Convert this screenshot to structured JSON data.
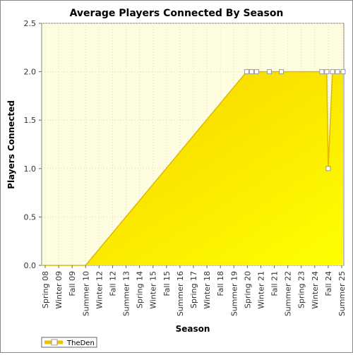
{
  "chart_data": {
    "type": "area",
    "title": "Average Players Connected By Season",
    "xlabel": "Season",
    "ylabel": "Players Connected",
    "ylim": [
      0,
      2.5
    ],
    "yticks": [
      "0.0",
      "0.5",
      "1.0",
      "1.5",
      "2.0",
      "2.5"
    ],
    "categories": [
      "Spring 08",
      "Winter 09",
      "Fall 09",
      "Summer 10",
      "Winter 12",
      "Fall 12",
      "Summer 13",
      "Spring 14",
      "Winter 15",
      "Fall 15",
      "Summer 16",
      "Spring 17",
      "Winter 18",
      "Fall 18",
      "Summer 19",
      "Spring 20",
      "Winter 21",
      "Fall 21",
      "Summer 22",
      "Spring 23",
      "Winter 24",
      "Fall 24",
      "Summer 25"
    ],
    "series": [
      {
        "name": "TheDen",
        "color": "#ffee00",
        "points": [
          {
            "x": "Spring 08",
            "y": 0
          },
          {
            "x": "Summer 10",
            "y": 0
          },
          {
            "x": "Spring 20",
            "y": 2
          },
          {
            "x": "Spring 20 b",
            "y": 2
          },
          {
            "x": "Spring 20 c",
            "y": 2
          },
          {
            "x": "Winter 21 b",
            "y": 2
          },
          {
            "x": "Fall 21 b",
            "y": 2
          },
          {
            "x": "Winter 24 b",
            "y": 2
          },
          {
            "x": "Winter 24 c",
            "y": 2
          },
          {
            "x": "Fall 24",
            "y": 1
          },
          {
            "x": "Fall 24 b",
            "y": 2
          },
          {
            "x": "Summer 25 a",
            "y": 2
          },
          {
            "x": "Summer 25",
            "y": 2
          }
        ]
      }
    ],
    "legend": {
      "position": "bottom-left",
      "label": "TheDen"
    },
    "grid": true
  }
}
